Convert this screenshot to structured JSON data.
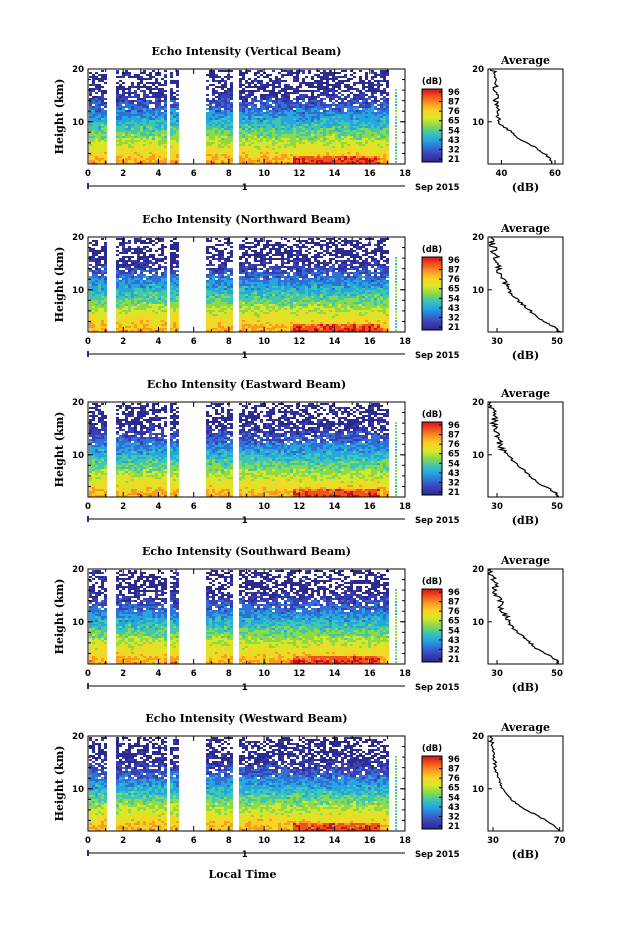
{
  "chart_data": {
    "type": "heatmap",
    "xlabel": "Local Time",
    "date_label": "Sep 2015",
    "date_marker": "1",
    "ylabel": "Height (km)",
    "x_ticks": [
      "0",
      "2",
      "4",
      "6",
      "8",
      "10",
      "12",
      "14",
      "16",
      "18"
    ],
    "xlim": [
      0,
      18
    ],
    "y_ticks": [
      "10",
      "20"
    ],
    "ylim": [
      2,
      20
    ],
    "colorbar": {
      "unit": "(dB)",
      "ticks": [
        "96",
        "87",
        "76",
        "65",
        "54",
        "43",
        "32",
        "21"
      ],
      "colors": [
        "#d4111b",
        "#f2521c",
        "#fa9b22",
        "#fbd325",
        "#d8e828",
        "#8cd94a",
        "#3fc7b0",
        "#24a6df",
        "#2f6fd6",
        "#3b3fb5",
        "#2a2a8f"
      ]
    },
    "data_gaps": [
      [
        1.0,
        1.5
      ],
      [
        4.35,
        4.6
      ],
      [
        5.1,
        6.6
      ],
      [
        8.2,
        8.5
      ]
    ],
    "profile_title": "Average",
    "profile_xlabel": "(dB)",
    "panels": [
      {
        "title": "Echo Intensity (Vertical Beam)",
        "profile_ticks": [
          "40",
          "60"
        ],
        "profile_xlim": [
          35,
          63
        ],
        "profile": {
          "height": [
            2,
            3,
            4,
            5,
            6,
            7,
            8,
            9,
            10,
            11,
            12,
            13,
            14,
            15,
            16,
            17,
            18,
            19,
            20
          ],
          "value": [
            59,
            58,
            56,
            53,
            50,
            46,
            44,
            41,
            39,
            39,
            39,
            38,
            38,
            39,
            37,
            38,
            37,
            38,
            36
          ]
        }
      },
      {
        "title": "Echo Intensity (Northward Beam)",
        "profile_ticks": [
          "30",
          "50"
        ],
        "profile_xlim": [
          27,
          52
        ],
        "profile": {
          "height": [
            2,
            3,
            4,
            5,
            6,
            7,
            8,
            9,
            10,
            11,
            12,
            13,
            14,
            15,
            16,
            17,
            18,
            19,
            20
          ],
          "value": [
            51,
            49,
            46,
            43,
            41,
            39,
            37,
            35,
            34,
            33,
            32,
            31,
            31,
            30,
            30,
            29,
            29,
            28,
            28
          ]
        }
      },
      {
        "title": "Echo Intensity (Eastward Beam)",
        "profile_ticks": [
          "30",
          "50"
        ],
        "profile_xlim": [
          27,
          52
        ],
        "profile": {
          "height": [
            2,
            3,
            4,
            5,
            6,
            7,
            8,
            9,
            10,
            11,
            12,
            13,
            14,
            15,
            16,
            17,
            18,
            19,
            20
          ],
          "value": [
            51,
            49,
            46,
            43,
            41,
            39,
            37,
            35,
            34,
            32,
            31,
            31,
            30,
            30,
            29,
            29,
            29,
            28,
            28
          ]
        }
      },
      {
        "title": "Echo Intensity (Southward Beam)",
        "profile_ticks": [
          "30",
          "50"
        ],
        "profile_xlim": [
          27,
          52
        ],
        "profile": {
          "height": [
            2,
            3,
            4,
            5,
            6,
            7,
            8,
            9,
            10,
            11,
            12,
            13,
            14,
            15,
            16,
            17,
            18,
            19,
            20
          ],
          "value": [
            51,
            49,
            46,
            43,
            41,
            39,
            37,
            35,
            34,
            33,
            32,
            31,
            31,
            30,
            29,
            30,
            29,
            28,
            28
          ]
        }
      },
      {
        "title": "Echo Intensity (Westward Beam)",
        "profile_ticks": [
          "30",
          "70"
        ],
        "profile_xlim": [
          27,
          72
        ],
        "profile": {
          "height": [
            2,
            3,
            4,
            5,
            6,
            7,
            8,
            9,
            10,
            11,
            12,
            13,
            14,
            15,
            16,
            17,
            18,
            19,
            20
          ],
          "value": [
            70,
            67,
            62,
            56,
            50,
            45,
            41,
            38,
            36,
            34,
            33,
            32,
            31,
            31,
            30,
            31,
            30,
            29,
            29
          ]
        }
      }
    ]
  }
}
